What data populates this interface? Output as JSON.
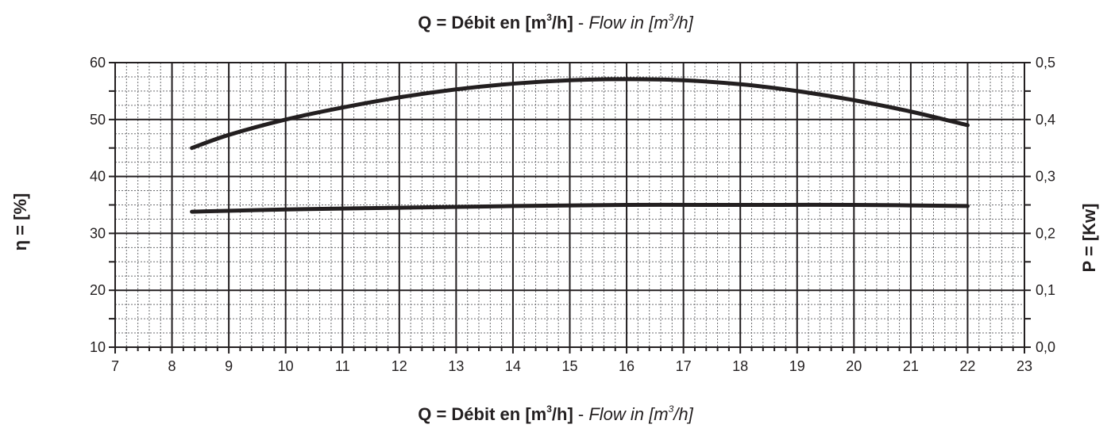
{
  "chart_data": {
    "type": "line",
    "title": {
      "q": "Q = Débit en [m",
      "sup1": "3",
      "unit_close": "/h]",
      "sep": " - ",
      "flow": "Flow in [m",
      "sup2": "3",
      "flow_close": "/h]"
    },
    "ylabel_left": "η = [%]",
    "ylabel_right": "P = [Kw]",
    "xlim": [
      7,
      23
    ],
    "x_ticks": [
      "7",
      "8",
      "9",
      "10",
      "11",
      "12",
      "13",
      "14",
      "15",
      "16",
      "17",
      "18",
      "19",
      "20",
      "21",
      "22",
      "23"
    ],
    "ylim_left": [
      10,
      60
    ],
    "y_ticks_left": [
      "10",
      "20",
      "30",
      "40",
      "50",
      "60"
    ],
    "ylim_right": [
      0.0,
      0.5
    ],
    "y_ticks_right": [
      "0,0",
      "0,1",
      "0,2",
      "0,3",
      "0,4",
      "0,5"
    ],
    "grid": true,
    "series": [
      {
        "axis": "left",
        "x": [
          8.35,
          9,
          10,
          11,
          12,
          13,
          14,
          15,
          16,
          17,
          18,
          19,
          20,
          21,
          22
        ],
        "y": [
          45.0,
          47.3,
          50.0,
          52.1,
          53.9,
          55.3,
          56.3,
          56.9,
          57.1,
          56.9,
          56.2,
          55.0,
          53.4,
          51.4,
          49.0
        ]
      },
      {
        "axis": "right",
        "x": [
          8.35,
          10,
          12,
          14,
          16,
          18,
          20,
          22
        ],
        "y": [
          0.238,
          0.242,
          0.245,
          0.248,
          0.25,
          0.25,
          0.25,
          0.248
        ]
      }
    ],
    "colors": {
      "axes": "#231f20",
      "grid_major": "#231f20",
      "grid_minor": "#6d6e71",
      "curve": "#231f20"
    }
  }
}
